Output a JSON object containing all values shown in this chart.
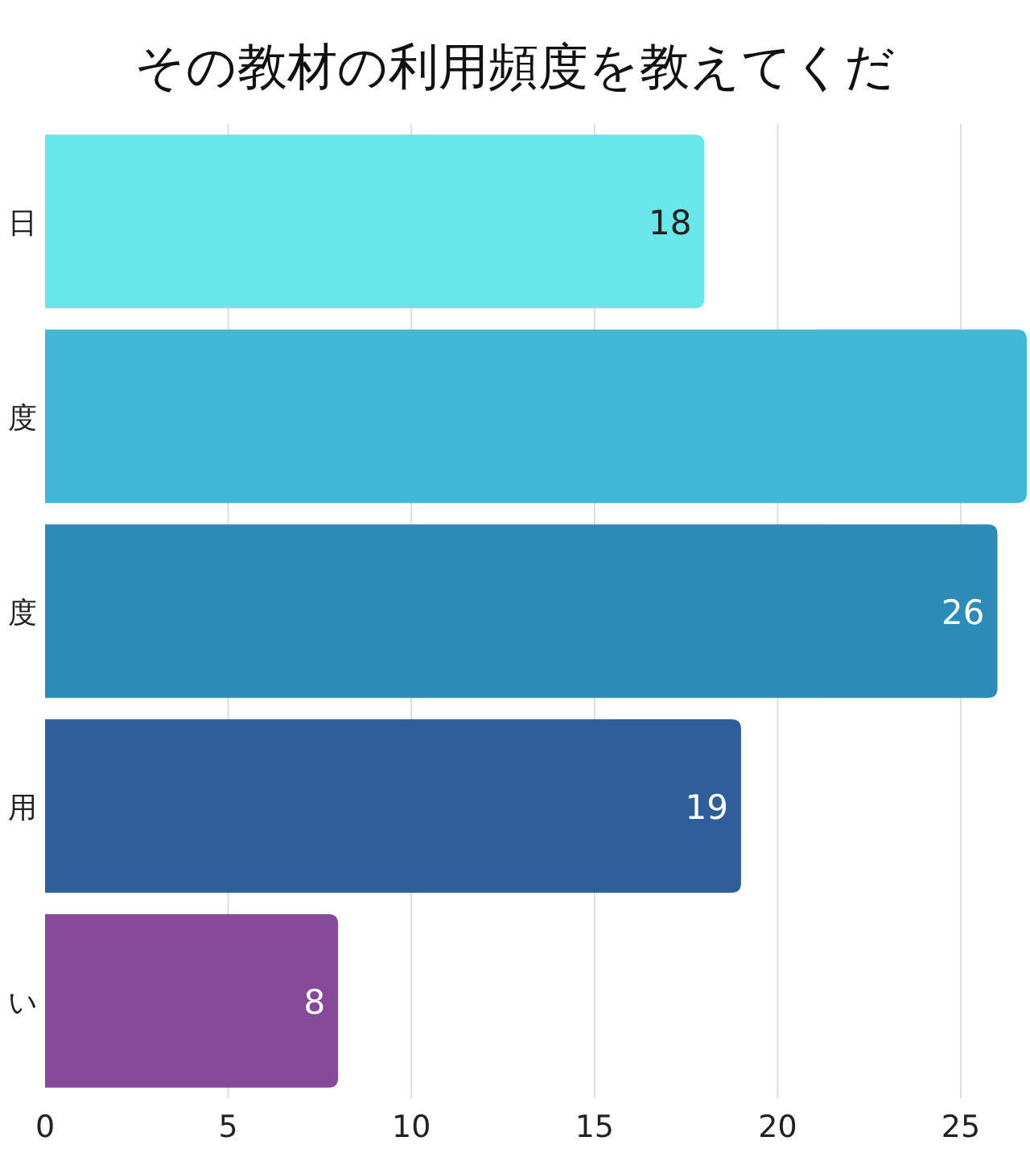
{
  "chart_data": {
    "type": "bar",
    "orientation": "horizontal",
    "title": "その教材の利用頻度を教えてくだ",
    "categories": [
      "日",
      "度",
      "度",
      "用",
      "い"
    ],
    "values": [
      18,
      26.8,
      26,
      19,
      8
    ],
    "colors": [
      "#69e6e8",
      "#42b7d3",
      "#2d8bb8",
      "#2e5f99",
      "#874a9b"
    ],
    "value_labels": [
      "18",
      null,
      "26",
      "19",
      "8"
    ],
    "xlim": [
      0,
      26.8
    ],
    "xticks": [
      0,
      5,
      10,
      15,
      20,
      25
    ],
    "grid": "x"
  }
}
